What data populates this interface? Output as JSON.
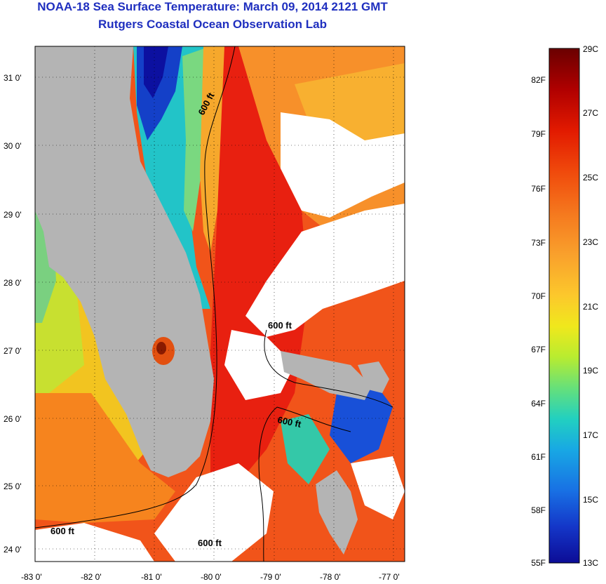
{
  "header": {
    "title": "NOAA-18 Sea Surface Temperature:  March 09, 2014 2121 GMT",
    "subtitle": "Rutgers Coastal Ocean Observation Lab"
  },
  "map": {
    "lat_ticks": [
      "31 0'",
      "30 0'",
      "29 0'",
      "28 0'",
      "27 0'",
      "26 0'",
      "25 0'",
      "24 0'"
    ],
    "lon_ticks": [
      "-83 0'",
      "-82 0'",
      "-81 0'",
      "-80 0'",
      "-79 0'",
      "-78 0'",
      "-77 0'"
    ],
    "contour_labels": [
      "600 ft",
      "600 ft",
      "600 ft",
      "600 ft",
      "600 ft"
    ],
    "land_color": "#b4b4b4",
    "cloud_color": "#ffffff"
  },
  "colorbar": {
    "celsius_labels": [
      "29C",
      "27C",
      "25C",
      "23C",
      "21C",
      "19C",
      "17C",
      "15C",
      "13C"
    ],
    "fahrenheit_labels": [
      "82F",
      "79F",
      "76F",
      "73F",
      "70F",
      "67F",
      "64F",
      "61F",
      "58F",
      "55F"
    ],
    "colors": [
      "#6a0000",
      "#b00000",
      "#e21a00",
      "#f04a0c",
      "#f5781e",
      "#f9a02c",
      "#fcc82c",
      "#f0e81c",
      "#b8ec30",
      "#66e07a",
      "#22d0c0",
      "#18a8e4",
      "#1870e4",
      "#1436c8",
      "#0c0c96"
    ]
  }
}
